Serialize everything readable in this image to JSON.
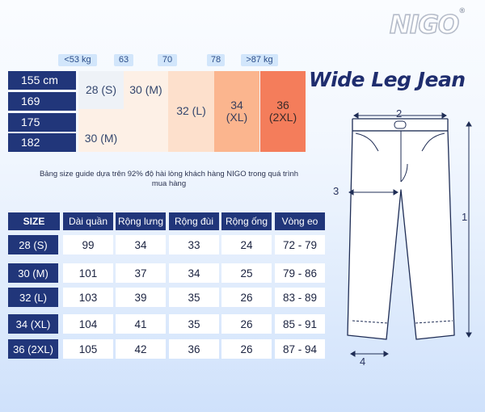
{
  "brand": {
    "logo": "NIGO",
    "registered": "®"
  },
  "weights": [
    "<53 kg",
    "63",
    "70",
    "78",
    ">87 kg"
  ],
  "heights": [
    "155 cm",
    "169",
    "175",
    "182"
  ],
  "size_cells": [
    "28 (S)",
    "30 (M)",
    "32 (L)",
    "34\n(XL)",
    "36\n(2XL)",
    "30 (M)"
  ],
  "title": "Wide Leg Jean",
  "note": "Bảng size guide dựa trên 92% độ hài lòng khách hàng NIGO trong quá trình mua hàng",
  "table": {
    "headers": [
      "SIZE",
      "Dài quần",
      "Rộng lưng",
      "Rộng đùi",
      "Rộng ống",
      "Vòng eo"
    ],
    "rows": [
      [
        "28 (S)",
        "99",
        "34",
        "33",
        "24",
        "72 - 79"
      ],
      [
        "30 (M)",
        "101",
        "37",
        "34",
        "25",
        "79 - 86"
      ],
      [
        "32 (L)",
        "103",
        "39",
        "35",
        "26",
        "83 - 89"
      ],
      [
        "34 (XL)",
        "104",
        "41",
        "35",
        "26",
        "85 - 91"
      ],
      [
        "36 (2XL)",
        "105",
        "42",
        "36",
        "26",
        "87 - 94"
      ]
    ]
  },
  "dimension_labels": [
    "1",
    "2",
    "3",
    "4"
  ],
  "colors": {
    "navy": "#21367a",
    "size_s": "#eef2f7",
    "size_m": "#fdf0e6",
    "size_l": "#fde0cc",
    "size_xl": "#fbb58e",
    "size_2xl": "#f47d5b"
  }
}
